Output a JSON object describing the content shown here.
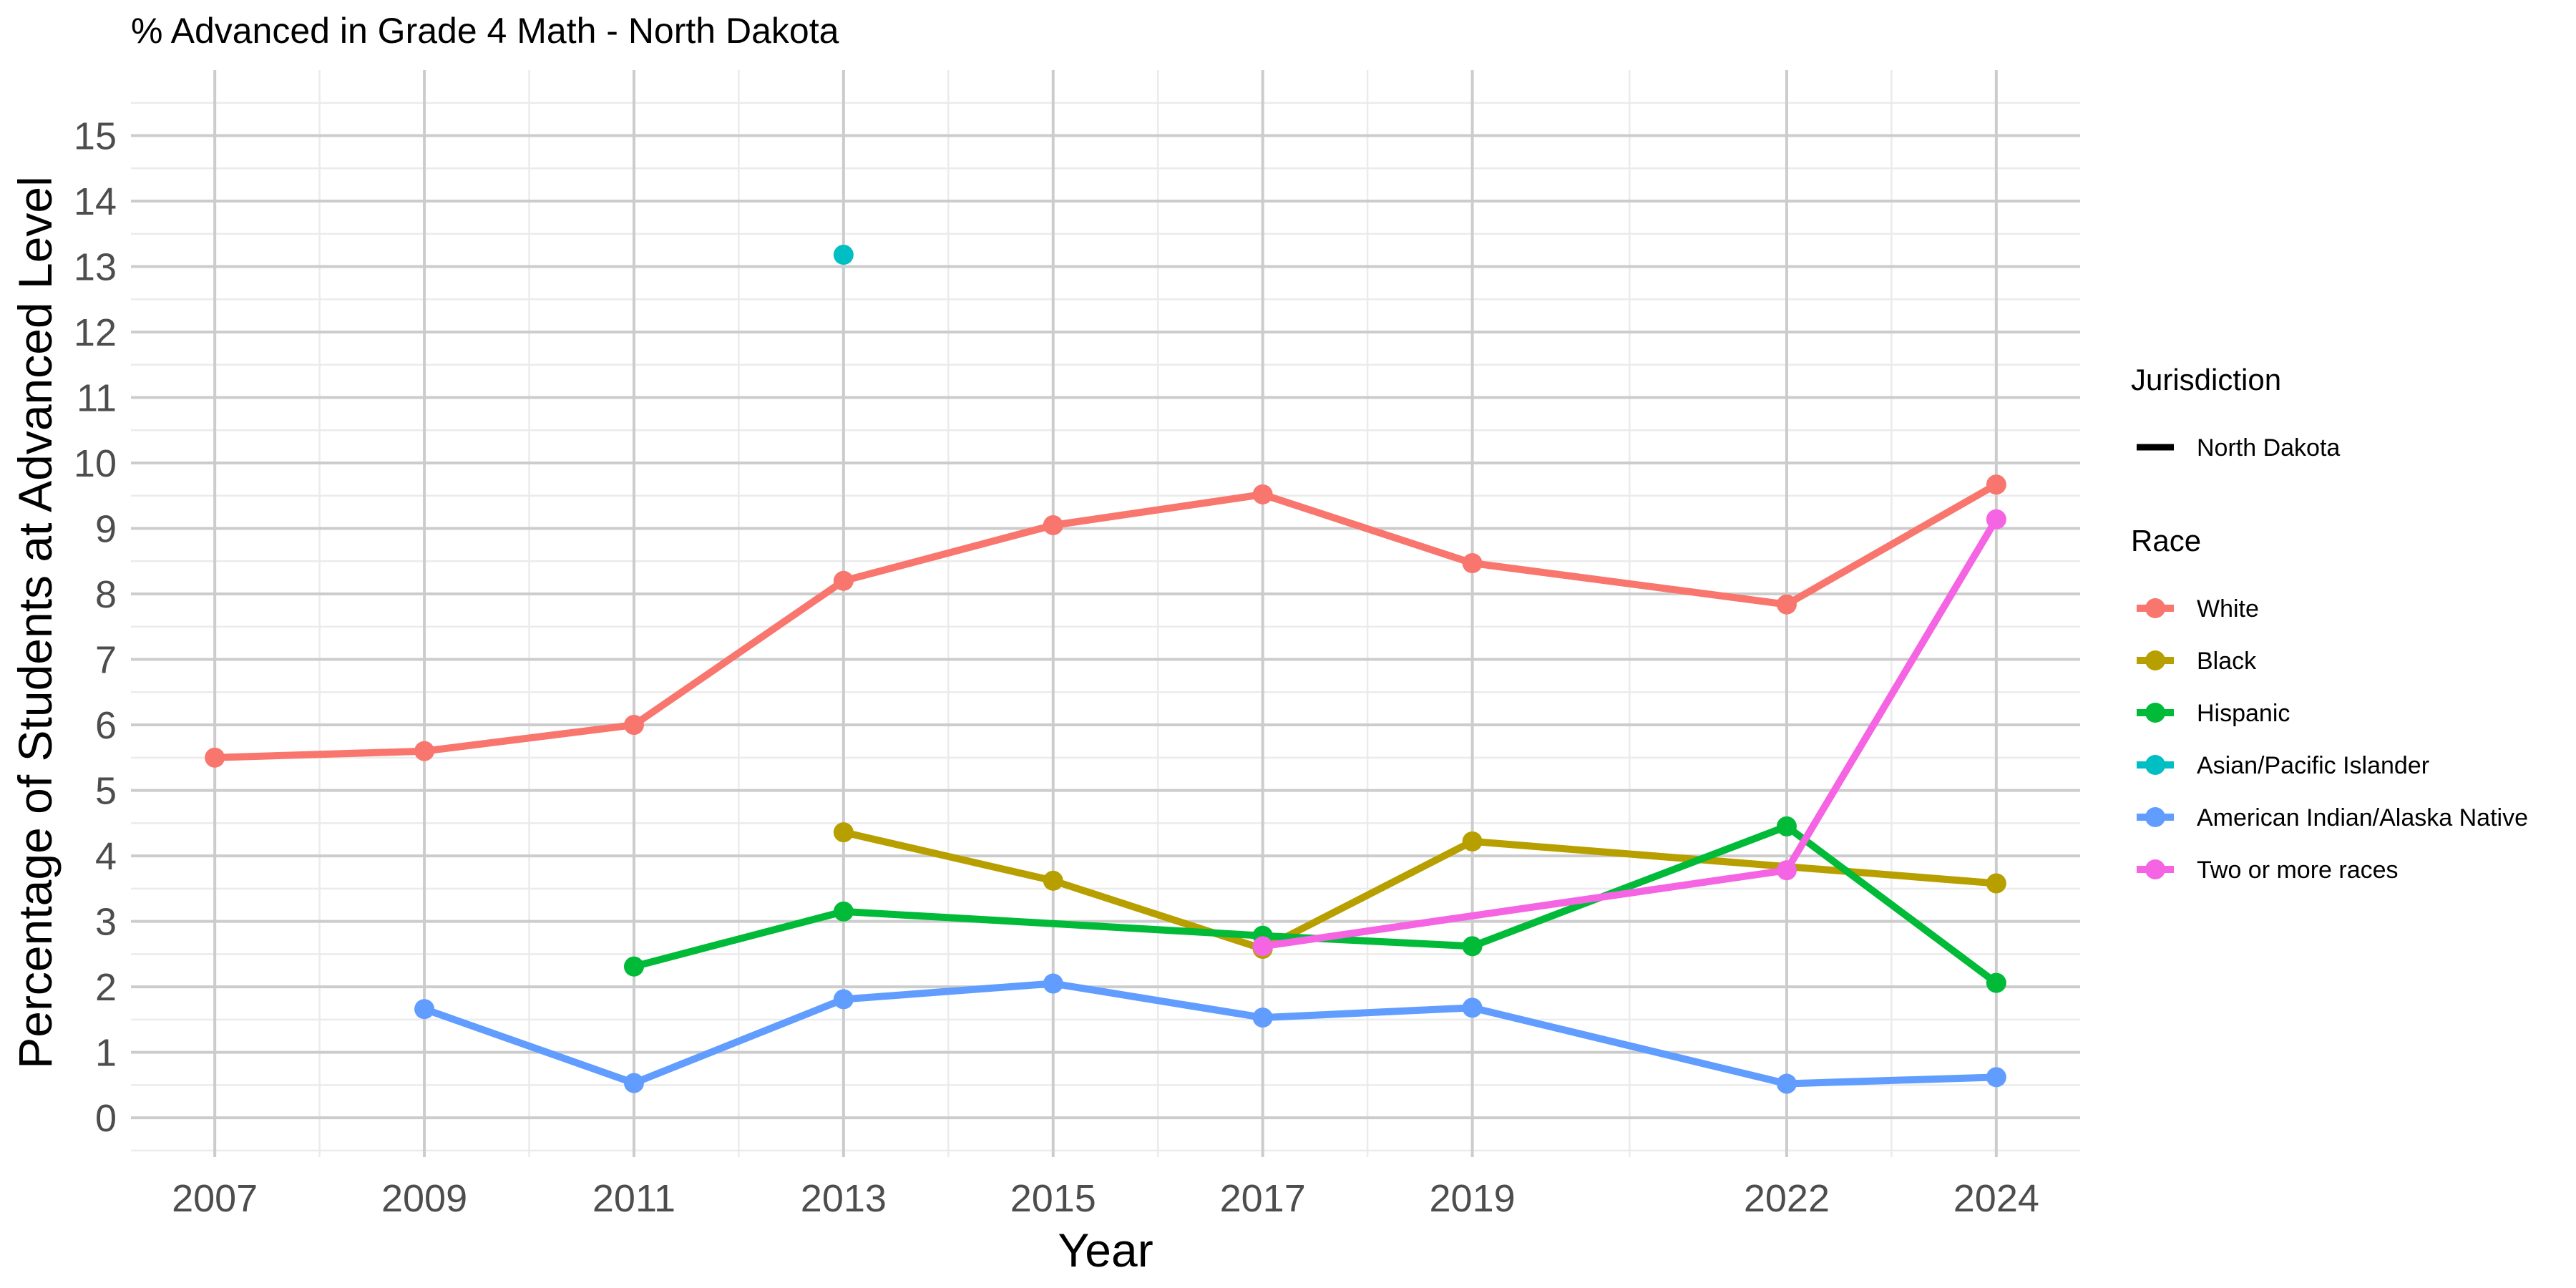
{
  "chart_data": {
    "type": "line",
    "title": "% Advanced in Grade 4 Math - North Dakota",
    "xlabel": "Year",
    "ylabel": "Percentage of Students at Advanced Level",
    "x_ticks": [
      2007,
      2009,
      2011,
      2013,
      2015,
      2017,
      2019,
      2022,
      2024
    ],
    "y_ticks": [
      0,
      1,
      2,
      3,
      4,
      5,
      6,
      7,
      8,
      9,
      10,
      11,
      12,
      13,
      14,
      15
    ],
    "xlim": [
      2006.2,
      2024.8
    ],
    "ylim": [
      -0.6,
      16.0
    ],
    "grid": true,
    "legend_position": "right",
    "legends": [
      {
        "title": "Jurisdiction",
        "entries": [
          {
            "label": "North Dakota",
            "color": "#000000",
            "marker": "line"
          }
        ]
      },
      {
        "title": "Race",
        "entries": [
          {
            "label": "White",
            "color": "#F8766D",
            "marker": "line-point"
          },
          {
            "label": "Black",
            "color": "#B79F00",
            "marker": "line-point"
          },
          {
            "label": "Hispanic",
            "color": "#00BA38",
            "marker": "line-point"
          },
          {
            "label": "Asian/Pacific Islander",
            "color": "#00BFC4",
            "marker": "line-point"
          },
          {
            "label": "American Indian/Alaska Native",
            "color": "#619CFF",
            "marker": "line-point"
          },
          {
            "label": "Two or more races",
            "color": "#F564E3",
            "marker": "line-point"
          }
        ]
      }
    ],
    "series": [
      {
        "name": "White",
        "color": "#F8766D",
        "x": [
          2007,
          2009,
          2011,
          2013,
          2015,
          2017,
          2019,
          2022,
          2024
        ],
        "y": [
          5.5,
          5.6,
          6.0,
          8.2,
          9.05,
          9.52,
          8.47,
          7.84,
          9.67
        ]
      },
      {
        "name": "Black",
        "color": "#B79F00",
        "x": [
          2013,
          2015,
          2017,
          2019,
          2024
        ],
        "y": [
          4.36,
          3.62,
          2.58,
          4.22,
          3.58
        ]
      },
      {
        "name": "Hispanic",
        "color": "#00BA38",
        "x": [
          2011,
          2013,
          2017,
          2019,
          2022,
          2024
        ],
        "y": [
          2.31,
          3.15,
          2.78,
          2.62,
          4.45,
          2.06
        ]
      },
      {
        "name": "Asian/Pacific Islander",
        "color": "#00BFC4",
        "x": [
          2013
        ],
        "y": [
          13.18
        ]
      },
      {
        "name": "American Indian/Alaska Native",
        "color": "#619CFF",
        "x": [
          2009,
          2011,
          2013,
          2015,
          2017,
          2019,
          2022,
          2024
        ],
        "y": [
          1.66,
          0.53,
          1.81,
          2.05,
          1.53,
          1.68,
          0.52,
          0.62
        ]
      },
      {
        "name": "Two or more races",
        "color": "#F564E3",
        "x": [
          2017,
          2022,
          2024
        ],
        "y": [
          2.62,
          3.78,
          9.14
        ]
      }
    ]
  }
}
